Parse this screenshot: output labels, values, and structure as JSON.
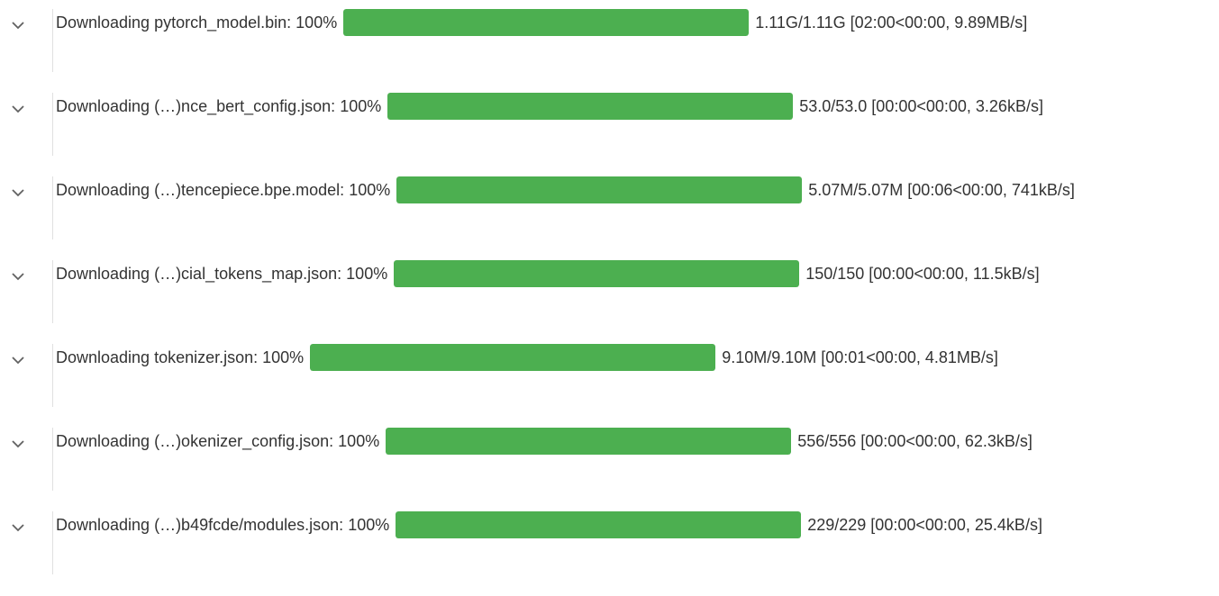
{
  "outputs": [
    {
      "description": "Downloading pytorch_model.bin:",
      "percent": 100,
      "percent_label": "100%",
      "stats": "1.11G/1.11G [02:00<00:00, 9.89MB/s]"
    },
    {
      "description": "Downloading (…)nce_bert_config.json:",
      "percent": 100,
      "percent_label": "100%",
      "stats": "53.0/53.0 [00:00<00:00, 3.26kB/s]"
    },
    {
      "description": "Downloading (…)tencepiece.bpe.model:",
      "percent": 100,
      "percent_label": "100%",
      "stats": "5.07M/5.07M [00:06<00:00, 741kB/s]"
    },
    {
      "description": "Downloading (…)cial_tokens_map.json:",
      "percent": 100,
      "percent_label": "100%",
      "stats": "150/150 [00:00<00:00, 11.5kB/s]"
    },
    {
      "description": "Downloading tokenizer.json:",
      "percent": 100,
      "percent_label": "100%",
      "stats": "9.10M/9.10M [00:01<00:00, 4.81MB/s]"
    },
    {
      "description": "Downloading (…)okenizer_config.json:",
      "percent": 100,
      "percent_label": "100%",
      "stats": "556/556 [00:00<00:00, 62.3kB/s]"
    },
    {
      "description": "Downloading (…)b49fcde/modules.json:",
      "percent": 100,
      "percent_label": "100%",
      "stats": "229/229 [00:00<00:00, 25.4kB/s]"
    }
  ]
}
